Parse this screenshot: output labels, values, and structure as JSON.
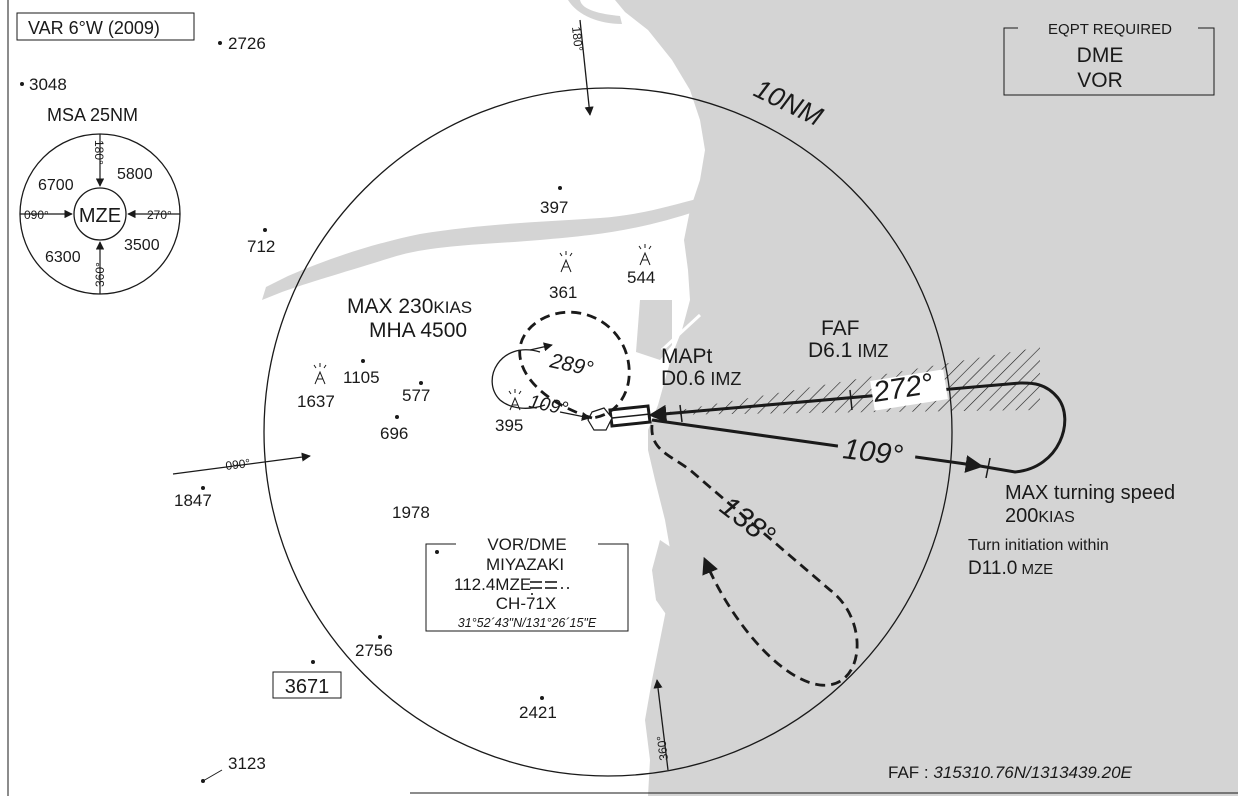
{
  "variation": "VAR 6°W (2009)",
  "ring_label": "10NM",
  "equipment": {
    "header": "EQPT REQUIRED",
    "item1": "DME",
    "item2": "VOR"
  },
  "msa": {
    "title": "MSA 25NM",
    "center": "MZE",
    "bearing_top": "180°",
    "bearing_right": "270°",
    "bearing_bottom": "360°",
    "bearing_left": "090°",
    "alt_nw": "6700",
    "alt_ne": "5800",
    "alt_se": "3500",
    "alt_sw": "6300"
  },
  "spot_elevations": {
    "e2726": "2726",
    "e3048": "3048",
    "e712": "712",
    "e397": "397",
    "e1105": "1105",
    "e577": "577",
    "e696": "696",
    "e1847": "1847",
    "e1978": "1978",
    "e2756": "2756",
    "e2421": "2421",
    "e3123": "3123"
  },
  "obstacles": {
    "o361": "361",
    "o544": "544",
    "o1637": "1637",
    "o395": "395"
  },
  "highest_elevation": "3671",
  "arrival_arrows": {
    "north": "180°",
    "west": "090°",
    "south": "360°"
  },
  "holding": {
    "speed_main": "MAX 230",
    "speed_unit": "KIAS",
    "mha": "MHA 4500",
    "outbound": "289°",
    "inbound": "109°"
  },
  "mapt": {
    "label": "MAPt",
    "fix_main": "D0.6",
    "fix_ident": " IMZ"
  },
  "faf": {
    "label": "FAF",
    "fix_main": "D6.1",
    "fix_ident": " IMZ"
  },
  "course_inbound": "272°",
  "course_outbound": "109°",
  "course_return": "138°",
  "turn": {
    "line1": "MAX turning speed",
    "line2_main": "200",
    "line2_unit": "KIAS",
    "line3": "Turn initiation within",
    "line4_main": "D11.0",
    "line4_unit": " MZE"
  },
  "navaid": {
    "title": "VOR/DME",
    "name": "MIYAZAKI",
    "freq": "112.4MZE",
    "channel": "CH-71X",
    "coords": "31°52´43\"N/131°26´15\"E"
  },
  "faf_coords": {
    "label": "FAF : ",
    "value": "315310.76N/1313439.20E"
  },
  "colors": {
    "sea": "#d4d4d4",
    "ink": "#1a1a1a",
    "paper": "#ffffff"
  }
}
